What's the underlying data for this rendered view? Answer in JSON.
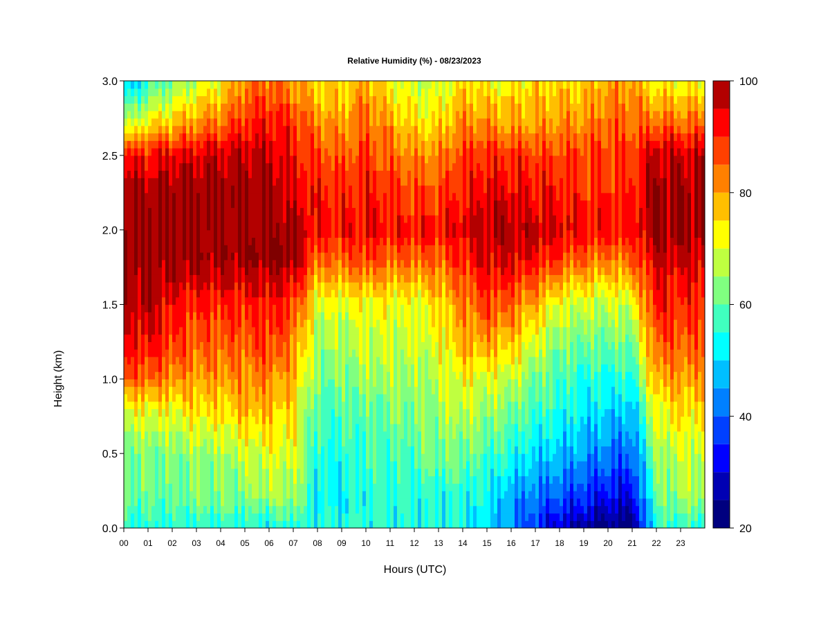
{
  "chart_data": {
    "type": "heatmap",
    "title": "Relative Humidity (%) - 08/23/2023",
    "xlabel": "Hours (UTC)",
    "ylabel": "Height (km)",
    "x_ticks": [
      "00",
      "01",
      "02",
      "03",
      "04",
      "05",
      "06",
      "07",
      "08",
      "09",
      "10",
      "11",
      "12",
      "13",
      "14",
      "15",
      "16",
      "17",
      "18",
      "19",
      "20",
      "21",
      "22",
      "23"
    ],
    "xlim": [
      0,
      24
    ],
    "y_ticks": [
      "0.0",
      "0.5",
      "1.0",
      "1.5",
      "2.0",
      "2.5",
      "3.0"
    ],
    "ylim": [
      0,
      3
    ],
    "colorbar": {
      "ticks": [
        "20",
        "40",
        "60",
        "80",
        "100"
      ],
      "range": [
        20,
        100
      ],
      "level_step": 5,
      "colors": [
        "#00007f",
        "#0000b3",
        "#0000ff",
        "#0040ff",
        "#0080ff",
        "#00bfff",
        "#00ffff",
        "#40ffbf",
        "#80ff80",
        "#bfff40",
        "#ffff00",
        "#ffbf00",
        "#ff8000",
        "#ff4000",
        "#ff0000",
        "#b30000",
        "#7f0000"
      ]
    },
    "hours": [
      0,
      1,
      2,
      3,
      4,
      5,
      6,
      7,
      8,
      9,
      10,
      11,
      12,
      13,
      14,
      15,
      16,
      17,
      18,
      19,
      20,
      21,
      22,
      23
    ],
    "heights_km": [
      0.0,
      0.2,
      0.5,
      0.8,
      1.0,
      1.2,
      1.5,
      1.8,
      2.0,
      2.2,
      2.5,
      2.7,
      3.0
    ],
    "rh_percent": [
      [
        55,
        55,
        55,
        55,
        55,
        55,
        52,
        55,
        55,
        55,
        55,
        55,
        55,
        55,
        55,
        50,
        45,
        35,
        28,
        25,
        22,
        22,
        55,
        55
      ],
      [
        60,
        60,
        60,
        62,
        62,
        62,
        65,
        65,
        52,
        52,
        55,
        55,
        55,
        55,
        55,
        52,
        45,
        42,
        38,
        35,
        32,
        30,
        60,
        65
      ],
      [
        62,
        62,
        62,
        65,
        65,
        68,
        70,
        70,
        55,
        55,
        58,
        58,
        60,
        62,
        62,
        58,
        55,
        50,
        48,
        45,
        42,
        40,
        65,
        68
      ],
      [
        70,
        72,
        72,
        75,
        75,
        78,
        78,
        75,
        58,
        58,
        60,
        62,
        62,
        65,
        68,
        65,
        62,
        58,
        55,
        52,
        50,
        48,
        72,
        75
      ],
      [
        85,
        85,
        82,
        80,
        80,
        82,
        82,
        78,
        62,
        62,
        65,
        65,
        65,
        68,
        72,
        70,
        68,
        62,
        58,
        55,
        55,
        55,
        80,
        80
      ],
      [
        90,
        92,
        88,
        85,
        85,
        85,
        88,
        82,
        65,
        65,
        68,
        68,
        68,
        70,
        78,
        78,
        75,
        68,
        62,
        60,
        60,
        60,
        85,
        85
      ],
      [
        97,
        98,
        92,
        90,
        90,
        90,
        92,
        88,
        70,
        70,
        72,
        72,
        70,
        75,
        82,
        88,
        85,
        78,
        70,
        68,
        68,
        70,
        92,
        90
      ],
      [
        100,
        100,
        100,
        100,
        100,
        100,
        100,
        100,
        85,
        85,
        88,
        85,
        85,
        85,
        90,
        95,
        95,
        92,
        88,
        85,
        82,
        85,
        96,
        95
      ],
      [
        100,
        100,
        100,
        100,
        100,
        100,
        100,
        100,
        92,
        92,
        93,
        92,
        92,
        92,
        95,
        98,
        98,
        97,
        95,
        93,
        92,
        92,
        100,
        100
      ],
      [
        100,
        100,
        100,
        100,
        100,
        100,
        100,
        95,
        92,
        90,
        92,
        90,
        88,
        88,
        92,
        95,
        95,
        93,
        92,
        90,
        90,
        90,
        100,
        100
      ],
      [
        92,
        92,
        95,
        95,
        97,
        97,
        97,
        92,
        88,
        85,
        88,
        85,
        82,
        82,
        88,
        90,
        90,
        88,
        88,
        88,
        88,
        88,
        98,
        97
      ],
      [
        68,
        75,
        78,
        82,
        85,
        90,
        92,
        90,
        82,
        80,
        85,
        80,
        75,
        75,
        82,
        82,
        80,
        80,
        82,
        82,
        85,
        85,
        85,
        85
      ],
      [
        45,
        55,
        62,
        68,
        72,
        82,
        85,
        80,
        75,
        75,
        80,
        72,
        68,
        68,
        75,
        72,
        72,
        75,
        75,
        75,
        80,
        80,
        72,
        72
      ]
    ]
  }
}
